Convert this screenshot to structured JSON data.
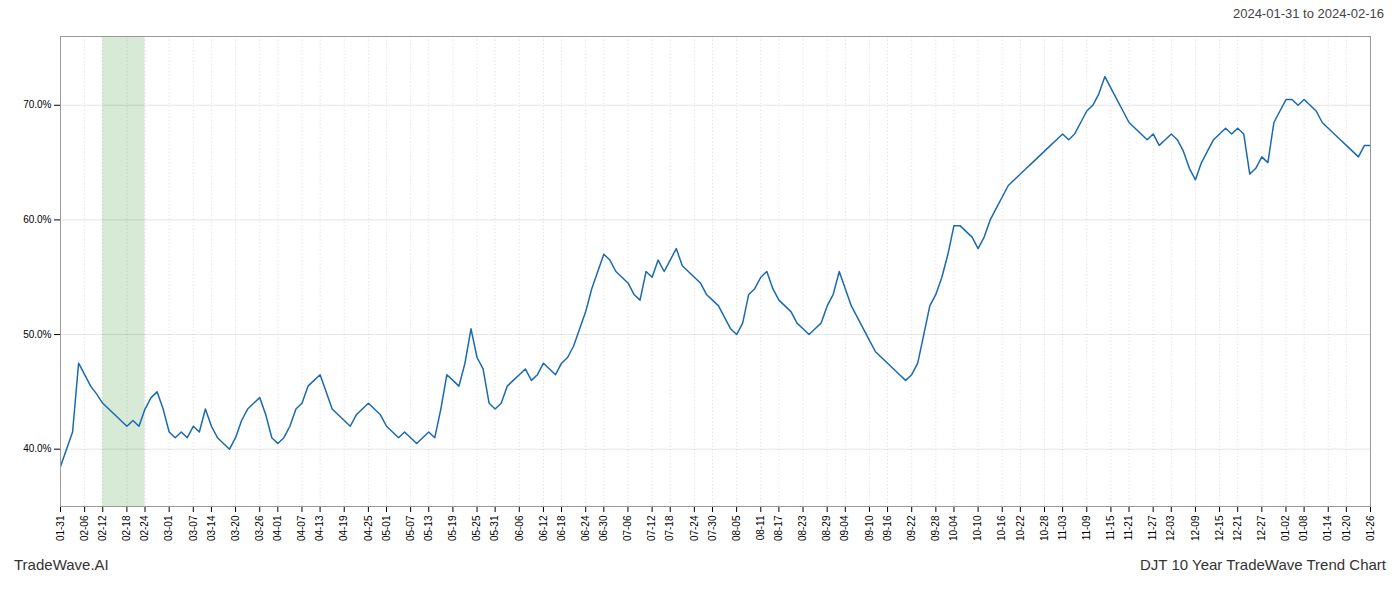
{
  "chart_data": {
    "type": "line",
    "title": "DJT 10 Year TradeWave Trend Chart",
    "subtitle": "2024-01-31 to 2024-02-16",
    "annotations": [
      "TradeWave.AI"
    ],
    "color": "#1a6ab0",
    "grid": true,
    "ylim": [
      35,
      76
    ],
    "yticks": [
      {
        "value": 40.0,
        "label": "40.0%"
      },
      {
        "value": 50.0,
        "label": "50.0%"
      },
      {
        "value": 60.0,
        "label": "60.0%"
      },
      {
        "value": 70.0,
        "label": "70.0%"
      }
    ],
    "highlight": {
      "from": "02-12",
      "to": "02-24",
      "color": "#d6ead6"
    },
    "categories": [
      "01-31",
      null,
      null,
      null,
      "02-06",
      null,
      null,
      "02-12",
      null,
      null,
      null,
      "02-18",
      null,
      null,
      "02-24",
      null,
      null,
      null,
      "03-01",
      null,
      null,
      null,
      "03-07",
      null,
      null,
      "03-14",
      null,
      null,
      null,
      "03-20",
      null,
      null,
      null,
      "03-26",
      null,
      null,
      "04-01",
      null,
      null,
      null,
      "04-07",
      null,
      null,
      "04-13",
      null,
      null,
      null,
      "04-19",
      null,
      null,
      null,
      "04-25",
      null,
      null,
      "05-01",
      null,
      null,
      null,
      "05-07",
      null,
      null,
      "05-13",
      null,
      null,
      null,
      "05-19",
      null,
      null,
      null,
      "05-25",
      null,
      null,
      "05-31",
      null,
      null,
      null,
      "06-06",
      null,
      null,
      null,
      "06-12",
      null,
      null,
      "06-18",
      null,
      null,
      null,
      "06-24",
      null,
      null,
      "06-30",
      null,
      null,
      null,
      "07-06",
      null,
      null,
      null,
      "07-12",
      null,
      null,
      "07-18",
      null,
      null,
      null,
      "07-24",
      null,
      null,
      "07-30",
      null,
      null,
      null,
      "08-05",
      null,
      null,
      null,
      "08-11",
      null,
      null,
      "08-17",
      null,
      null,
      null,
      "08-23",
      null,
      null,
      null,
      "08-29",
      null,
      null,
      "09-04",
      null,
      null,
      null,
      "09-10",
      null,
      null,
      "09-16",
      null,
      null,
      null,
      "09-22",
      null,
      null,
      null,
      "09-28",
      null,
      null,
      "10-04",
      null,
      null,
      null,
      "10-10",
      null,
      null,
      null,
      "10-16",
      null,
      null,
      "10-22",
      null,
      null,
      null,
      "10-28",
      null,
      null,
      "11-03",
      null,
      null,
      null,
      "11-09",
      null,
      null,
      null,
      "11-15",
      null,
      null,
      "11-21",
      null,
      null,
      null,
      "11-27",
      null,
      null,
      "12-03",
      null,
      null,
      null,
      "12-09",
      null,
      null,
      null,
      "12-15",
      null,
      null,
      "12-21",
      null,
      null,
      null,
      "12-27",
      null,
      null,
      null,
      "01-02",
      null,
      null,
      "01-08",
      null,
      null,
      null,
      "01-14",
      null,
      null,
      "01-20",
      null,
      null,
      null,
      "01-26"
    ],
    "values": [
      38.5,
      40.0,
      41.5,
      47.5,
      46.5,
      45.5,
      44.8,
      44.0,
      43.5,
      43.0,
      42.5,
      42.0,
      42.5,
      42.0,
      43.5,
      44.5,
      45.0,
      43.5,
      41.5,
      41.0,
      41.5,
      41.0,
      42.0,
      41.5,
      43.5,
      42.0,
      41.0,
      40.5,
      40.0,
      41.0,
      42.5,
      43.5,
      44.0,
      44.5,
      43.0,
      41.0,
      40.5,
      41.0,
      42.0,
      43.5,
      44.0,
      45.5,
      46.0,
      46.5,
      45.0,
      43.5,
      43.0,
      42.5,
      42.0,
      43.0,
      43.5,
      44.0,
      43.5,
      43.0,
      42.0,
      41.5,
      41.0,
      41.5,
      41.0,
      40.5,
      41.0,
      41.5,
      41.0,
      43.5,
      46.5,
      46.0,
      45.5,
      47.5,
      50.5,
      48.0,
      47.0,
      44.0,
      43.5,
      44.0,
      45.5,
      46.0,
      46.5,
      47.0,
      46.0,
      46.5,
      47.5,
      47.0,
      46.5,
      47.5,
      48.0,
      49.0,
      50.5,
      52.0,
      54.0,
      55.5,
      57.0,
      56.5,
      55.5,
      55.0,
      54.5,
      53.5,
      53.0,
      55.5,
      55.0,
      56.5,
      55.5,
      56.5,
      57.5,
      56.0,
      55.5,
      55.0,
      54.5,
      53.5,
      53.0,
      52.5,
      51.5,
      50.5,
      50.0,
      51.0,
      53.5,
      54.0,
      55.0,
      55.5,
      54.0,
      53.0,
      52.5,
      52.0,
      51.0,
      50.5,
      50.0,
      50.5,
      51.0,
      52.5,
      53.5,
      55.5,
      54.0,
      52.5,
      51.5,
      50.5,
      49.5,
      48.5,
      48.0,
      47.5,
      47.0,
      46.5,
      46.0,
      46.5,
      47.5,
      50.0,
      52.5,
      53.5,
      55.0,
      57.0,
      59.5,
      59.5,
      59.0,
      58.5,
      57.5,
      58.5,
      60.0,
      61.0,
      62.0,
      63.0,
      63.5,
      64.0,
      64.5,
      65.0,
      65.5,
      66.0,
      66.5,
      67.0,
      67.5,
      67.0,
      67.5,
      68.5,
      69.5,
      70.0,
      71.0,
      72.5,
      71.5,
      70.5,
      69.5,
      68.5,
      68.0,
      67.5,
      67.0,
      67.5,
      66.5,
      67.0,
      67.5,
      67.0,
      66.0,
      64.5,
      63.5,
      65.0,
      66.0,
      67.0,
      67.5,
      68.0,
      67.5,
      68.0,
      67.5,
      64.0,
      64.5,
      65.5,
      65.0,
      68.5,
      69.5,
      70.5,
      70.5,
      70.0,
      70.5,
      70.0,
      69.5,
      68.5,
      68.0,
      67.5,
      67.0,
      66.5,
      66.0,
      65.5,
      66.5,
      66.5
    ]
  }
}
